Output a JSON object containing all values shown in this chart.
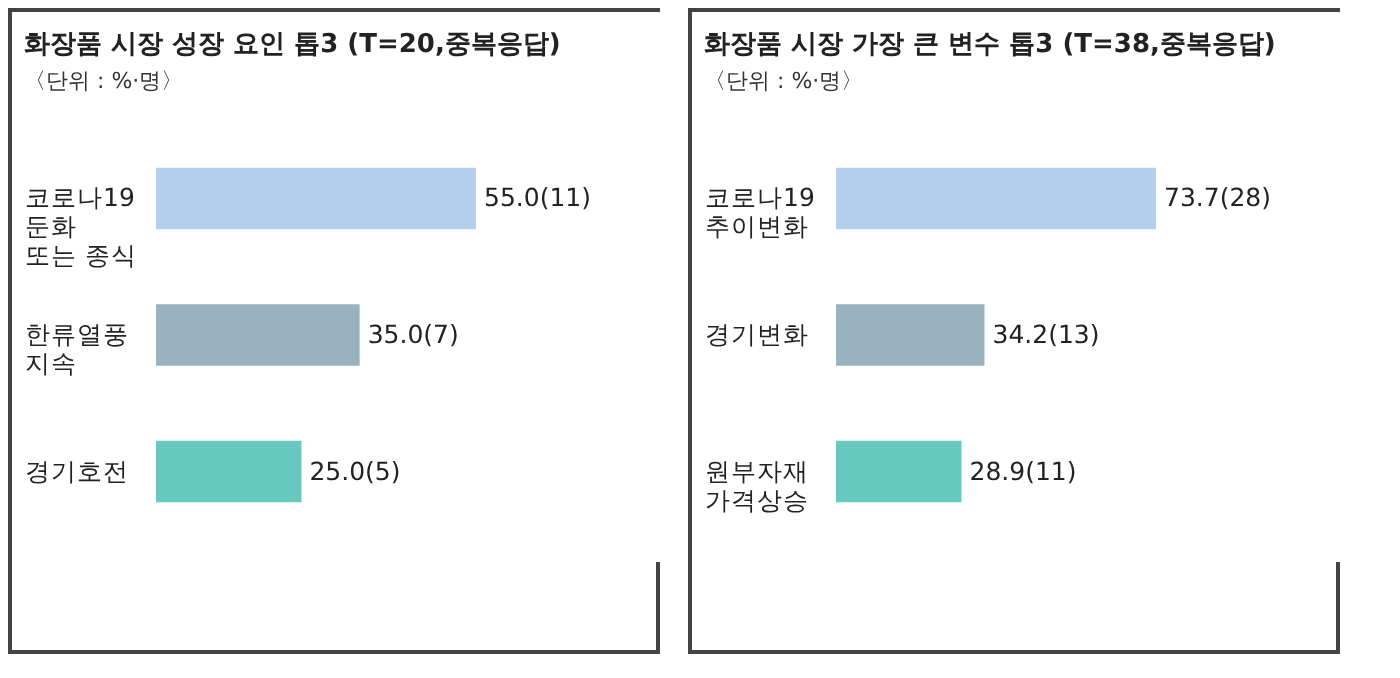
{
  "chart_data": [
    {
      "type": "bar",
      "orientation": "horizontal",
      "title": "화장품 시장 성장 요인 톱3 (T=20,중복응답)",
      "subtitle": "〈단위 : %·명〉",
      "categories": [
        "코로나19\n둔화\n또는 종식",
        "한류열풍\n지속",
        "경기호전"
      ],
      "values": [
        55.0,
        35.0,
        25.0
      ],
      "value_labels": [
        "55.0(11)",
        "35.0(7)",
        "25.0(5)"
      ],
      "colors": [
        "#b4cfec",
        "#98b3bf",
        "#66c8bf"
      ],
      "tick_labels": "y"
    },
    {
      "type": "bar",
      "orientation": "horizontal",
      "title": "화장품 시장 가장 큰 변수 톱3 (T=38,중복응답)",
      "subtitle": "〈단위 : %·명〉",
      "categories": [
        "코로나19\n추이변화",
        "경기변화",
        "원부자재\n가격상승"
      ],
      "values": [
        73.7,
        34.2,
        28.9
      ],
      "value_labels": [
        "73.7(28)",
        "34.2(13)",
        "28.9(11)"
      ],
      "colors": [
        "#b4cfec",
        "#98b3bf",
        "#66c8bf"
      ],
      "tick_labels": "y"
    }
  ]
}
